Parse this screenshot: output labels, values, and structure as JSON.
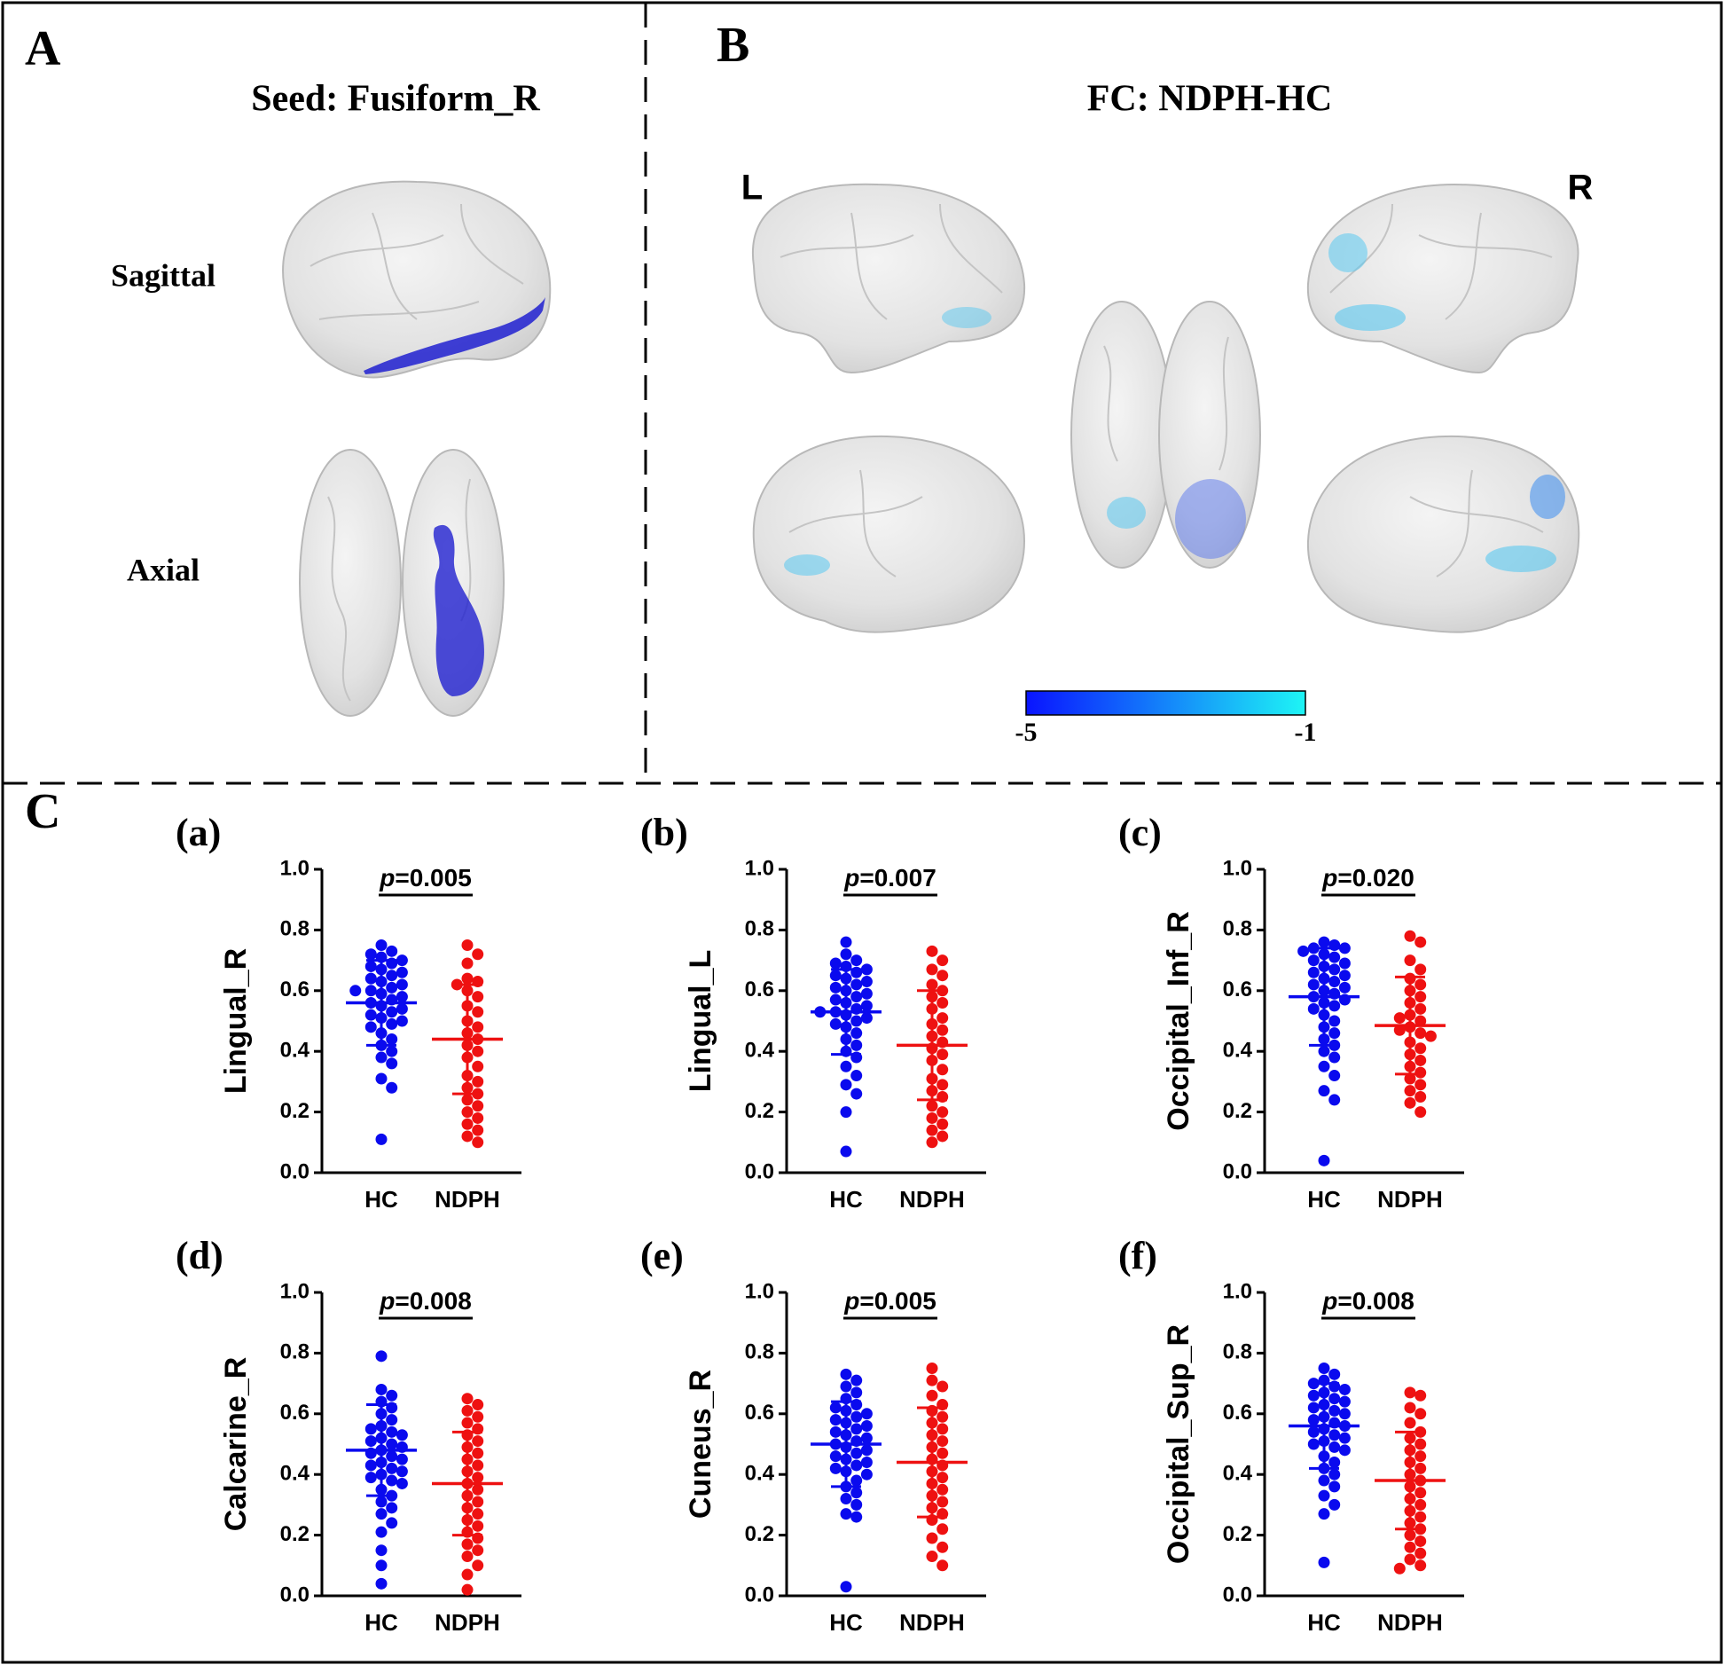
{
  "panel_a": {
    "label": "A",
    "title": "Seed: Fusiform_R",
    "views": [
      "Sagittal",
      "Axial"
    ]
  },
  "panel_b": {
    "label": "B",
    "title": "FC: NDPH-HC",
    "hemispheres": [
      "L",
      "R"
    ],
    "colorbar": {
      "ticks": [
        -5,
        -1
      ],
      "colors": [
        "#0a14ff",
        "#1ef5f5"
      ]
    }
  },
  "panel_c": {
    "label": "C"
  },
  "chart_data": [
    {
      "type": "dot",
      "label": "(a)",
      "ylabel": "Lingual_R",
      "annotation": "p=0.005",
      "ylim": [
        0,
        1
      ],
      "yticks": [
        {
          "value": 0,
          "label": "0.0"
        },
        0.2,
        0.4,
        0.6,
        0.8,
        {
          "value": 1,
          "label": "1.0"
        }
      ],
      "series": [
        {
          "name": "HC",
          "color": "#0a0aee",
          "mean": 0.56,
          "sd": 0.14,
          "values": [
            0.75,
            0.73,
            0.72,
            0.71,
            0.7,
            0.69,
            0.68,
            0.67,
            0.66,
            0.65,
            0.64,
            0.63,
            0.62,
            0.61,
            0.6,
            0.6,
            0.59,
            0.58,
            0.57,
            0.56,
            0.55,
            0.54,
            0.53,
            0.52,
            0.51,
            0.5,
            0.49,
            0.48,
            0.46,
            0.44,
            0.42,
            0.4,
            0.38,
            0.36,
            0.31,
            0.28,
            0.11
          ]
        },
        {
          "name": "NDPH",
          "color": "#ee1111",
          "mean": 0.44,
          "sd": 0.18,
          "values": [
            0.75,
            0.72,
            0.69,
            0.64,
            0.63,
            0.62,
            0.6,
            0.58,
            0.55,
            0.53,
            0.5,
            0.48,
            0.46,
            0.44,
            0.42,
            0.4,
            0.38,
            0.35,
            0.32,
            0.3,
            0.28,
            0.26,
            0.24,
            0.22,
            0.2,
            0.18,
            0.16,
            0.14,
            0.12,
            0.1
          ]
        }
      ]
    },
    {
      "type": "dot",
      "label": "(b)",
      "ylabel": "Lingual_L",
      "annotation": "p=0.007",
      "ylim": [
        0,
        1
      ],
      "yticks": [
        {
          "value": 0,
          "label": "0.0"
        },
        0.2,
        0.4,
        0.6,
        0.8,
        {
          "value": 1,
          "label": "1.0"
        }
      ],
      "series": [
        {
          "name": "HC",
          "color": "#0a0aee",
          "mean": 0.53,
          "sd": 0.14,
          "values": [
            0.76,
            0.72,
            0.7,
            0.69,
            0.68,
            0.67,
            0.66,
            0.65,
            0.64,
            0.63,
            0.62,
            0.61,
            0.6,
            0.59,
            0.58,
            0.57,
            0.56,
            0.55,
            0.54,
            0.53,
            0.53,
            0.52,
            0.51,
            0.5,
            0.49,
            0.48,
            0.46,
            0.44,
            0.42,
            0.4,
            0.38,
            0.35,
            0.32,
            0.29,
            0.26,
            0.2,
            0.07
          ]
        },
        {
          "name": "NDPH",
          "color": "#ee1111",
          "mean": 0.42,
          "sd": 0.18,
          "values": [
            0.73,
            0.7,
            0.67,
            0.65,
            0.62,
            0.6,
            0.58,
            0.56,
            0.54,
            0.51,
            0.49,
            0.47,
            0.45,
            0.43,
            0.41,
            0.39,
            0.37,
            0.34,
            0.31,
            0.29,
            0.27,
            0.25,
            0.22,
            0.2,
            0.18,
            0.16,
            0.14,
            0.12,
            0.1
          ]
        }
      ]
    },
    {
      "type": "dot",
      "label": "(c)",
      "ylabel": "Occipital_Inf_R",
      "annotation": "p=0.020",
      "ylim": [
        0,
        1
      ],
      "yticks": [
        {
          "value": 0,
          "label": "0.0"
        },
        0.2,
        0.4,
        0.6,
        0.8,
        {
          "value": 1,
          "label": "1.0"
        }
      ],
      "series": [
        {
          "name": "HC",
          "color": "#0a0aee",
          "mean": 0.58,
          "sd": 0.16,
          "values": [
            0.76,
            0.75,
            0.74,
            0.74,
            0.73,
            0.72,
            0.71,
            0.7,
            0.69,
            0.68,
            0.67,
            0.66,
            0.65,
            0.64,
            0.63,
            0.62,
            0.61,
            0.6,
            0.59,
            0.58,
            0.57,
            0.56,
            0.55,
            0.54,
            0.52,
            0.5,
            0.48,
            0.46,
            0.44,
            0.42,
            0.4,
            0.38,
            0.35,
            0.32,
            0.27,
            0.24,
            0.04
          ]
        },
        {
          "name": "NDPH",
          "color": "#ee1111",
          "mean": 0.485,
          "sd": 0.16,
          "values": [
            0.78,
            0.76,
            0.7,
            0.67,
            0.64,
            0.62,
            0.6,
            0.58,
            0.56,
            0.54,
            0.52,
            0.51,
            0.5,
            0.48,
            0.47,
            0.46,
            0.45,
            0.43,
            0.41,
            0.39,
            0.37,
            0.35,
            0.33,
            0.31,
            0.29,
            0.27,
            0.25,
            0.23,
            0.2
          ]
        }
      ]
    },
    {
      "type": "dot",
      "label": "(d)",
      "ylabel": "Calcarine_R",
      "annotation": "p=0.008",
      "ylim": [
        0,
        1
      ],
      "yticks": [
        {
          "value": 0,
          "label": "0.0"
        },
        0.2,
        0.4,
        0.6,
        0.8,
        {
          "value": 1,
          "label": "1.0"
        }
      ],
      "series": [
        {
          "name": "HC",
          "color": "#0a0aee",
          "mean": 0.48,
          "sd": 0.15,
          "values": [
            0.79,
            0.68,
            0.66,
            0.64,
            0.62,
            0.6,
            0.58,
            0.56,
            0.55,
            0.54,
            0.53,
            0.52,
            0.51,
            0.5,
            0.49,
            0.48,
            0.47,
            0.46,
            0.45,
            0.44,
            0.43,
            0.42,
            0.41,
            0.4,
            0.39,
            0.38,
            0.37,
            0.35,
            0.33,
            0.31,
            0.29,
            0.27,
            0.24,
            0.21,
            0.15,
            0.1,
            0.04
          ]
        },
        {
          "name": "NDPH",
          "color": "#ee1111",
          "mean": 0.37,
          "sd": 0.17,
          "values": [
            0.65,
            0.63,
            0.61,
            0.59,
            0.57,
            0.55,
            0.53,
            0.51,
            0.49,
            0.47,
            0.45,
            0.43,
            0.41,
            0.39,
            0.37,
            0.35,
            0.33,
            0.31,
            0.29,
            0.27,
            0.25,
            0.23,
            0.21,
            0.19,
            0.17,
            0.15,
            0.13,
            0.1,
            0.07,
            0.02
          ]
        }
      ]
    },
    {
      "type": "dot",
      "label": "(e)",
      "ylabel": "Cuneus_R",
      "annotation": "p=0.005",
      "ylim": [
        0,
        1
      ],
      "yticks": [
        {
          "value": 0,
          "label": "0.0"
        },
        0.2,
        0.4,
        0.6,
        0.8,
        {
          "value": 1,
          "label": "1.0"
        }
      ],
      "series": [
        {
          "name": "HC",
          "color": "#0a0aee",
          "mean": 0.5,
          "sd": 0.14,
          "values": [
            0.73,
            0.71,
            0.69,
            0.67,
            0.65,
            0.63,
            0.62,
            0.61,
            0.6,
            0.59,
            0.58,
            0.57,
            0.56,
            0.55,
            0.54,
            0.53,
            0.52,
            0.51,
            0.5,
            0.49,
            0.48,
            0.47,
            0.46,
            0.45,
            0.44,
            0.43,
            0.42,
            0.41,
            0.4,
            0.38,
            0.36,
            0.34,
            0.32,
            0.3,
            0.27,
            0.26,
            0.03
          ]
        },
        {
          "name": "NDPH",
          "color": "#ee1111",
          "mean": 0.44,
          "sd": 0.18,
          "values": [
            0.75,
            0.71,
            0.69,
            0.66,
            0.63,
            0.61,
            0.59,
            0.57,
            0.55,
            0.53,
            0.51,
            0.49,
            0.47,
            0.45,
            0.43,
            0.41,
            0.39,
            0.37,
            0.35,
            0.33,
            0.31,
            0.29,
            0.27,
            0.25,
            0.22,
            0.19,
            0.16,
            0.13,
            0.1
          ]
        }
      ]
    },
    {
      "type": "dot",
      "label": "(f)",
      "ylabel": "Occipital_Sup_R",
      "annotation": "p=0.008",
      "ylim": [
        0,
        1
      ],
      "yticks": [
        {
          "value": 0,
          "label": "0.0"
        },
        0.2,
        0.4,
        0.6,
        0.8,
        {
          "value": 1,
          "label": "1.0"
        }
      ],
      "series": [
        {
          "name": "HC",
          "color": "#0a0aee",
          "mean": 0.56,
          "sd": 0.14,
          "values": [
            0.75,
            0.73,
            0.71,
            0.7,
            0.69,
            0.68,
            0.67,
            0.66,
            0.65,
            0.64,
            0.63,
            0.62,
            0.61,
            0.6,
            0.59,
            0.58,
            0.57,
            0.56,
            0.55,
            0.54,
            0.53,
            0.52,
            0.51,
            0.5,
            0.49,
            0.48,
            0.46,
            0.44,
            0.42,
            0.4,
            0.38,
            0.36,
            0.33,
            0.3,
            0.27,
            0.11
          ]
        },
        {
          "name": "NDPH",
          "color": "#ee1111",
          "mean": 0.38,
          "sd": 0.16,
          "values": [
            0.67,
            0.66,
            0.62,
            0.6,
            0.57,
            0.54,
            0.52,
            0.5,
            0.48,
            0.46,
            0.44,
            0.42,
            0.4,
            0.38,
            0.36,
            0.34,
            0.32,
            0.3,
            0.28,
            0.26,
            0.24,
            0.22,
            0.2,
            0.18,
            0.16,
            0.14,
            0.12,
            0.1,
            0.09
          ]
        }
      ]
    }
  ]
}
